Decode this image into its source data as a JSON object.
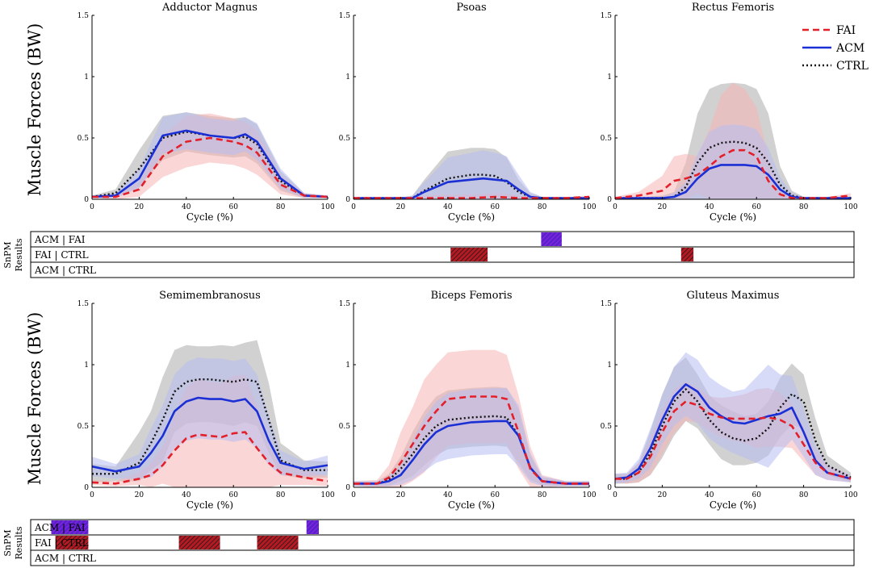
{
  "figure": {
    "ylabel": "Muscle Forces (BW)",
    "snpm_label_line1": "SnPM",
    "snpm_label_line2": "Results"
  },
  "colors": {
    "FAI": "#e3202a",
    "ACM": "#1a2fd4",
    "CTRL": "#111111",
    "FAI_band": "#f7b5b5",
    "ACM_band": "#b7bdf3",
    "CTRL_band": "#b3b3b3"
  },
  "legend": [
    {
      "name": "FAI",
      "style": "dashed"
    },
    {
      "name": "ACM",
      "style": "solid"
    },
    {
      "name": "CTRL",
      "style": "dotted"
    }
  ],
  "chart_data": [
    {
      "type": "line",
      "title": "Adductor Magnus",
      "xlabel": "Cycle (%)",
      "ylabel": "Muscle Forces (BW)",
      "xlim": [
        0,
        100
      ],
      "ylim": [
        0,
        1.5
      ],
      "xticks": [
        0,
        20,
        40,
        60,
        80,
        100
      ],
      "yticks": [
        0,
        0.5,
        1,
        1.5
      ],
      "ytick_labels": [
        "0",
        "0.5",
        "1",
        "1.5"
      ],
      "x": [
        0,
        10,
        20,
        30,
        40,
        50,
        60,
        65,
        70,
        80,
        90,
        100
      ],
      "series": [
        {
          "name": "FAI",
          "mean": [
            0.02,
            0.02,
            0.08,
            0.35,
            0.47,
            0.5,
            0.47,
            0.44,
            0.38,
            0.12,
            0.03,
            0.02
          ],
          "sd": [
            0.01,
            0.02,
            0.06,
            0.17,
            0.21,
            0.2,
            0.19,
            0.19,
            0.18,
            0.08,
            0.02,
            0.01
          ]
        },
        {
          "name": "ACM",
          "mean": [
            0.02,
            0.03,
            0.17,
            0.52,
            0.56,
            0.52,
            0.5,
            0.53,
            0.47,
            0.17,
            0.03,
            0.02
          ],
          "sd": [
            0.01,
            0.02,
            0.08,
            0.15,
            0.15,
            0.14,
            0.14,
            0.14,
            0.15,
            0.08,
            0.02,
            0.01
          ]
        },
        {
          "name": "CTRL",
          "mean": [
            0.02,
            0.05,
            0.25,
            0.5,
            0.55,
            0.52,
            0.5,
            0.51,
            0.45,
            0.15,
            0.03,
            0.02
          ],
          "sd": [
            0.01,
            0.03,
            0.15,
            0.18,
            0.16,
            0.16,
            0.16,
            0.16,
            0.16,
            0.08,
            0.02,
            0.01
          ]
        }
      ]
    },
    {
      "type": "line",
      "title": "Psoas",
      "xlabel": "Cycle (%)",
      "ylabel": "",
      "xlim": [
        0,
        100
      ],
      "ylim": [
        0,
        1.5
      ],
      "xticks": [
        0,
        20,
        40,
        60,
        80,
        100
      ],
      "yticks": [
        0,
        0.5,
        1,
        1.5
      ],
      "ytick_labels": [
        "0",
        "0.5",
        "1",
        "1.5"
      ],
      "x": [
        0,
        10,
        20,
        25,
        30,
        40,
        50,
        55,
        60,
        65,
        70,
        75,
        80,
        90,
        100
      ],
      "series": [
        {
          "name": "FAI",
          "mean": [
            0.01,
            0.01,
            0.01,
            0.01,
            0.01,
            0.01,
            0.01,
            0.015,
            0.02,
            0.015,
            0.01,
            0.01,
            0.01,
            0.01,
            0.02
          ],
          "sd": [
            0.005,
            0.005,
            0.005,
            0.01,
            0.02,
            0.03,
            0.03,
            0.03,
            0.03,
            0.03,
            0.02,
            0.01,
            0.005,
            0.005,
            0.01
          ]
        },
        {
          "name": "ACM",
          "mean": [
            0.01,
            0.01,
            0.01,
            0.01,
            0.06,
            0.14,
            0.16,
            0.17,
            0.16,
            0.15,
            0.08,
            0.02,
            0.01,
            0.01,
            0.01
          ],
          "sd": [
            0.005,
            0.005,
            0.005,
            0.02,
            0.08,
            0.2,
            0.22,
            0.23,
            0.22,
            0.2,
            0.12,
            0.04,
            0.01,
            0.005,
            0.005
          ]
        },
        {
          "name": "CTRL",
          "mean": [
            0.01,
            0.01,
            0.01,
            0.01,
            0.07,
            0.17,
            0.2,
            0.2,
            0.19,
            0.14,
            0.06,
            0.02,
            0.01,
            0.01,
            0.01
          ],
          "sd": [
            0.005,
            0.005,
            0.005,
            0.02,
            0.09,
            0.22,
            0.22,
            0.22,
            0.22,
            0.2,
            0.1,
            0.03,
            0.01,
            0.005,
            0.005
          ]
        }
      ]
    },
    {
      "type": "line",
      "title": "Rectus Femoris",
      "xlabel": "Cycle (%)",
      "ylabel": "",
      "xlim": [
        0,
        100
      ],
      "ylim": [
        0,
        1.5
      ],
      "xticks": [
        0,
        20,
        40,
        60,
        80,
        100
      ],
      "yticks": [
        0,
        0.5,
        1,
        1.5
      ],
      "ytick_labels": [
        "0",
        "0.5",
        "1",
        "1.5"
      ],
      "x": [
        0,
        10,
        20,
        25,
        30,
        35,
        40,
        45,
        50,
        55,
        60,
        65,
        70,
        75,
        80,
        90,
        100
      ],
      "series": [
        {
          "name": "FAI",
          "mean": [
            0.01,
            0.03,
            0.07,
            0.15,
            0.17,
            0.2,
            0.27,
            0.35,
            0.4,
            0.4,
            0.35,
            0.15,
            0.04,
            0.01,
            0.01,
            0.01,
            0.03
          ],
          "sd": [
            0.01,
            0.03,
            0.12,
            0.2,
            0.2,
            0.15,
            0.3,
            0.5,
            0.55,
            0.5,
            0.4,
            0.2,
            0.05,
            0.02,
            0.01,
            0.01,
            0.02
          ]
        },
        {
          "name": "ACM",
          "mean": [
            0.01,
            0.01,
            0.01,
            0.02,
            0.06,
            0.17,
            0.25,
            0.28,
            0.28,
            0.28,
            0.27,
            0.2,
            0.08,
            0.02,
            0.01,
            0.01,
            0.01
          ],
          "sd": [
            0.005,
            0.005,
            0.01,
            0.03,
            0.08,
            0.2,
            0.3,
            0.32,
            0.33,
            0.32,
            0.3,
            0.22,
            0.1,
            0.03,
            0.01,
            0.005,
            0.005
          ]
        },
        {
          "name": "CTRL",
          "mean": [
            0.01,
            0.01,
            0.01,
            0.02,
            0.1,
            0.3,
            0.42,
            0.46,
            0.47,
            0.46,
            0.42,
            0.3,
            0.12,
            0.03,
            0.01,
            0.01,
            0.01
          ],
          "sd": [
            0.005,
            0.005,
            0.02,
            0.04,
            0.2,
            0.4,
            0.48,
            0.48,
            0.48,
            0.48,
            0.48,
            0.4,
            0.15,
            0.04,
            0.01,
            0.005,
            0.005
          ]
        }
      ]
    },
    {
      "type": "line",
      "title": "Semimembranosus",
      "xlabel": "Cycle (%)",
      "ylabel": "Muscle Forces (BW)",
      "xlim": [
        0,
        100
      ],
      "ylim": [
        0,
        1.5
      ],
      "xticks": [
        0,
        20,
        40,
        60,
        80,
        100
      ],
      "yticks": [
        0,
        0.5,
        1,
        1.5
      ],
      "ytick_labels": [
        "0",
        "0.5",
        "1",
        "1.5"
      ],
      "x": [
        0,
        10,
        20,
        25,
        30,
        35,
        40,
        45,
        50,
        55,
        60,
        65,
        70,
        75,
        80,
        90,
        100
      ],
      "series": [
        {
          "name": "FAI",
          "mean": [
            0.04,
            0.03,
            0.07,
            0.1,
            0.18,
            0.3,
            0.4,
            0.43,
            0.42,
            0.41,
            0.44,
            0.45,
            0.32,
            0.2,
            0.12,
            0.08,
            0.05
          ],
          "sd": [
            0.02,
            0.02,
            0.05,
            0.1,
            0.15,
            0.3,
            0.42,
            0.45,
            0.44,
            0.44,
            0.47,
            0.47,
            0.35,
            0.2,
            0.1,
            0.06,
            0.04
          ]
        },
        {
          "name": "ACM",
          "mean": [
            0.17,
            0.13,
            0.17,
            0.28,
            0.42,
            0.62,
            0.7,
            0.73,
            0.72,
            0.72,
            0.7,
            0.72,
            0.62,
            0.38,
            0.2,
            0.15,
            0.18
          ],
          "sd": [
            0.08,
            0.06,
            0.1,
            0.2,
            0.25,
            0.3,
            0.32,
            0.33,
            0.33,
            0.33,
            0.33,
            0.33,
            0.3,
            0.2,
            0.1,
            0.06,
            0.08
          ]
        },
        {
          "name": "CTRL",
          "mean": [
            0.11,
            0.11,
            0.2,
            0.36,
            0.55,
            0.78,
            0.86,
            0.88,
            0.88,
            0.87,
            0.86,
            0.88,
            0.86,
            0.55,
            0.22,
            0.14,
            0.14
          ]
        },
        {
          "name": "CTRL_band",
          "lower": [
            0.04,
            0.05,
            0.05,
            0.14,
            0.21,
            0.45,
            0.52,
            0.53,
            0.53,
            0.52,
            0.5,
            0.53,
            0.5,
            0.28,
            0.1,
            0.07,
            0.08
          ],
          "upper": [
            0.19,
            0.17,
            0.45,
            0.62,
            0.9,
            1.12,
            1.16,
            1.15,
            1.15,
            1.16,
            1.15,
            1.18,
            1.2,
            0.85,
            0.36,
            0.22,
            0.21
          ]
        }
      ]
    },
    {
      "type": "line",
      "title": "Biceps Femoris",
      "xlabel": "Cycle (%)",
      "ylabel": "",
      "xlim": [
        0,
        100
      ],
      "ylim": [
        0,
        1.5
      ],
      "xticks": [
        0,
        20,
        40,
        60,
        80,
        100
      ],
      "yticks": [
        0,
        0.5,
        1,
        1.5
      ],
      "ytick_labels": [
        "0",
        "0.5",
        "1",
        "1.5"
      ],
      "x": [
        0,
        10,
        15,
        20,
        25,
        30,
        35,
        40,
        50,
        60,
        65,
        70,
        75,
        80,
        90,
        100
      ],
      "series": [
        {
          "name": "FAI",
          "mean": [
            0.03,
            0.03,
            0.08,
            0.2,
            0.35,
            0.5,
            0.62,
            0.72,
            0.74,
            0.74,
            0.72,
            0.45,
            0.15,
            0.05,
            0.03,
            0.03
          ],
          "sd": [
            0.02,
            0.03,
            0.1,
            0.25,
            0.3,
            0.38,
            0.38,
            0.38,
            0.38,
            0.38,
            0.36,
            0.3,
            0.18,
            0.05,
            0.02,
            0.02
          ]
        },
        {
          "name": "ACM",
          "mean": [
            0.03,
            0.03,
            0.05,
            0.1,
            0.22,
            0.35,
            0.45,
            0.5,
            0.53,
            0.54,
            0.54,
            0.42,
            0.16,
            0.05,
            0.03,
            0.03
          ],
          "sd": [
            0.02,
            0.02,
            0.04,
            0.08,
            0.16,
            0.22,
            0.25,
            0.27,
            0.27,
            0.27,
            0.27,
            0.25,
            0.12,
            0.04,
            0.02,
            0.02
          ]
        },
        {
          "name": "CTRL",
          "mean": [
            0.03,
            0.03,
            0.06,
            0.15,
            0.27,
            0.4,
            0.5,
            0.55,
            0.57,
            0.58,
            0.57,
            0.42,
            0.16,
            0.05,
            0.03,
            0.03
          ],
          "sd": [
            0.02,
            0.02,
            0.05,
            0.1,
            0.18,
            0.22,
            0.24,
            0.24,
            0.24,
            0.24,
            0.24,
            0.22,
            0.1,
            0.03,
            0.02,
            0.02
          ]
        }
      ]
    },
    {
      "type": "line",
      "title": "Gluteus Maximus",
      "xlabel": "Cycle (%)",
      "ylabel": "",
      "xlim": [
        0,
        100
      ],
      "ylim": [
        0,
        1.5
      ],
      "xticks": [
        0,
        20,
        40,
        60,
        80,
        100
      ],
      "yticks": [
        0,
        0.5,
        1,
        1.5
      ],
      "ytick_labels": [
        "0",
        "0.5",
        "1",
        "1.5"
      ],
      "x": [
        0,
        5,
        10,
        15,
        20,
        25,
        30,
        35,
        40,
        45,
        50,
        55,
        60,
        65,
        70,
        75,
        80,
        85,
        90,
        100
      ],
      "series": [
        {
          "name": "FAI",
          "mean": [
            0.07,
            0.07,
            0.12,
            0.25,
            0.45,
            0.62,
            0.7,
            0.67,
            0.6,
            0.57,
            0.56,
            0.56,
            0.56,
            0.57,
            0.55,
            0.5,
            0.35,
            0.2,
            0.12,
            0.07
          ],
          "sd": [
            0.03,
            0.04,
            0.08,
            0.15,
            0.18,
            0.18,
            0.16,
            0.14,
            0.14,
            0.16,
            0.18,
            0.2,
            0.24,
            0.24,
            0.22,
            0.18,
            0.14,
            0.1,
            0.06,
            0.03
          ]
        },
        {
          "name": "ACM",
          "mean": [
            0.07,
            0.08,
            0.15,
            0.32,
            0.55,
            0.74,
            0.84,
            0.78,
            0.65,
            0.58,
            0.53,
            0.52,
            0.55,
            0.58,
            0.6,
            0.65,
            0.45,
            0.22,
            0.12,
            0.07
          ],
          "sd": [
            0.04,
            0.04,
            0.08,
            0.16,
            0.2,
            0.24,
            0.26,
            0.26,
            0.25,
            0.25,
            0.25,
            0.28,
            0.35,
            0.42,
            0.32,
            0.26,
            0.2,
            0.12,
            0.06,
            0.03
          ]
        },
        {
          "name": "CTRL",
          "mean": [
            0.07,
            0.07,
            0.12,
            0.28,
            0.5,
            0.7,
            0.8,
            0.7,
            0.55,
            0.45,
            0.4,
            0.38,
            0.4,
            0.48,
            0.65,
            0.76,
            0.7,
            0.38,
            0.18,
            0.08
          ],
          "sd": [
            0.04,
            0.04,
            0.08,
            0.18,
            0.26,
            0.28,
            0.26,
            0.22,
            0.2,
            0.22,
            0.22,
            0.2,
            0.2,
            0.22,
            0.24,
            0.25,
            0.22,
            0.18,
            0.08,
            0.04
          ]
        }
      ]
    }
  ],
  "snpm": [
    {
      "rows": [
        {
          "label": "ACM | FAI",
          "marks": [
            {
              "start": 62,
              "end": 64.5,
              "type": "ACM_FAI"
            }
          ]
        },
        {
          "label": "FAI | CTRL",
          "marks": [
            {
              "start": 51,
              "end": 55.5,
              "type": "FAI_CTRL"
            },
            {
              "start": 79,
              "end": 80.5,
              "type": "FAI_CTRL"
            }
          ]
        },
        {
          "label": "ACM | CTRL",
          "marks": []
        }
      ]
    },
    {
      "rows": [
        {
          "label": "ACM | FAI",
          "marks": [
            {
              "start": 2.5,
              "end": 7,
              "type": "ACM_FAI"
            },
            {
              "start": 33.5,
              "end": 35,
              "type": "ACM_FAI"
            }
          ]
        },
        {
          "label": "FAI | CTRL",
          "marks": [
            {
              "start": 3,
              "end": 7,
              "type": "FAI_CTRL"
            },
            {
              "start": 18,
              "end": 23,
              "type": "FAI_CTRL"
            },
            {
              "start": 27.5,
              "end": 32.5,
              "type": "FAI_CTRL"
            }
          ]
        },
        {
          "label": "ACM | CTRL",
          "marks": []
        }
      ]
    }
  ]
}
